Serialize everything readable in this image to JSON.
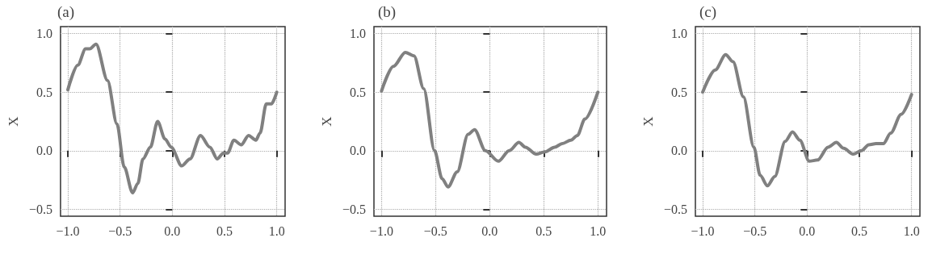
{
  "chart_data": [
    {
      "type": "line",
      "title": "(a)",
      "ylabel": "X",
      "xlim": [
        -1.07,
        1.08
      ],
      "ylim": [
        -0.56,
        1.06
      ],
      "xticks": [
        {
          "value": -1,
          "label": "−1.0"
        },
        {
          "value": -0.5,
          "label": "−0.5"
        },
        {
          "value": 0,
          "label": "0.0"
        },
        {
          "value": 0.5,
          "label": "0.5"
        },
        {
          "value": 1,
          "label": "1.0"
        }
      ],
      "yticks": [
        {
          "value": -0.5,
          "label": "−0.5"
        },
        {
          "value": 0,
          "label": "0.0"
        },
        {
          "value": 0.5,
          "label": "0.5"
        },
        {
          "value": 1,
          "label": "1.0"
        }
      ],
      "grid": true,
      "line_style": "solid",
      "marker": "none",
      "x": [
        -1.0,
        -0.905,
        -0.83,
        -0.79,
        -0.73,
        -0.62,
        -0.53,
        -0.46,
        -0.38,
        -0.33,
        -0.28,
        -0.21,
        -0.14,
        -0.07,
        -0.01,
        0.09,
        0.17,
        0.27,
        0.36,
        0.43,
        0.49,
        0.53,
        0.59,
        0.66,
        0.73,
        0.8,
        0.84,
        0.9,
        0.95,
        1.0
      ],
      "series": [
        {
          "color": "#808080",
          "values": [
            0.52,
            0.73,
            0.87,
            0.87,
            0.91,
            0.6,
            0.23,
            -0.14,
            -0.36,
            -0.28,
            -0.07,
            0.03,
            0.25,
            0.1,
            0.03,
            -0.13,
            -0.07,
            0.13,
            0.03,
            -0.07,
            -0.02,
            -0.02,
            0.09,
            0.05,
            0.13,
            0.09,
            0.15,
            0.4,
            0.4,
            0.5
          ]
        }
      ]
    },
    {
      "type": "line",
      "title": "(b)",
      "ylabel": "X",
      "xlim": [
        -1.07,
        1.08
      ],
      "ylim": [
        -0.56,
        1.06
      ],
      "xticks": [
        {
          "value": -1,
          "label": "−1.0"
        },
        {
          "value": -0.5,
          "label": "−0.5"
        },
        {
          "value": 0,
          "label": "0.0"
        },
        {
          "value": 0.5,
          "label": "0.5"
        },
        {
          "value": 1,
          "label": "1.0"
        }
      ],
      "yticks": [
        {
          "value": -0.5,
          "label": "−0.5"
        },
        {
          "value": 0,
          "label": "0.0"
        },
        {
          "value": 0.5,
          "label": "0.5"
        },
        {
          "value": 1,
          "label": "1.0"
        }
      ],
      "grid": true,
      "line_style": "solid",
      "marker": "none",
      "x": [
        -1.0,
        -0.89,
        -0.78,
        -0.7,
        -0.61,
        -0.51,
        -0.44,
        -0.385,
        -0.3,
        -0.2,
        -0.14,
        -0.04,
        0.08,
        0.18,
        0.27,
        0.33,
        0.43,
        0.51,
        0.6,
        0.67,
        0.75,
        0.81,
        0.88,
        1.0
      ],
      "series": [
        {
          "color": "#808080",
          "values": [
            0.51,
            0.72,
            0.84,
            0.81,
            0.53,
            0.0,
            -0.24,
            -0.31,
            -0.18,
            0.14,
            0.18,
            0.0,
            -0.09,
            0.0,
            0.07,
            0.03,
            -0.03,
            -0.01,
            0.03,
            0.06,
            0.09,
            0.13,
            0.27,
            0.5
          ]
        }
      ]
    },
    {
      "type": "line",
      "title": "(c)",
      "ylabel": "X",
      "xlim": [
        -1.07,
        1.08
      ],
      "ylim": [
        -0.56,
        1.06
      ],
      "xticks": [
        {
          "value": -1,
          "label": "−1.0"
        },
        {
          "value": -0.5,
          "label": "−0.5"
        },
        {
          "value": 0,
          "label": "0.0"
        },
        {
          "value": 0.5,
          "label": "0.5"
        },
        {
          "value": 1,
          "label": "1.0"
        }
      ],
      "yticks": [
        {
          "value": -0.5,
          "label": "−0.5"
        },
        {
          "value": 0,
          "label": "0.0"
        },
        {
          "value": 0.5,
          "label": "0.5"
        },
        {
          "value": 1,
          "label": "1.0"
        }
      ],
      "grid": true,
      "line_style": "solid",
      "marker": "none",
      "x": [
        -1.0,
        -0.88,
        -0.78,
        -0.71,
        -0.61,
        -0.51,
        -0.45,
        -0.38,
        -0.31,
        -0.21,
        -0.14,
        -0.07,
        0.02,
        0.1,
        0.2,
        0.28,
        0.35,
        0.44,
        0.52,
        0.59,
        0.66,
        0.73,
        0.8,
        0.9,
        1.0
      ],
      "series": [
        {
          "color": "#808080",
          "values": [
            0.5,
            0.69,
            0.82,
            0.76,
            0.46,
            0.03,
            -0.21,
            -0.3,
            -0.22,
            0.08,
            0.16,
            0.09,
            -0.09,
            -0.08,
            0.03,
            0.07,
            0.02,
            -0.03,
            0.0,
            0.05,
            0.06,
            0.06,
            0.15,
            0.31,
            0.48
          ]
        }
      ]
    }
  ]
}
